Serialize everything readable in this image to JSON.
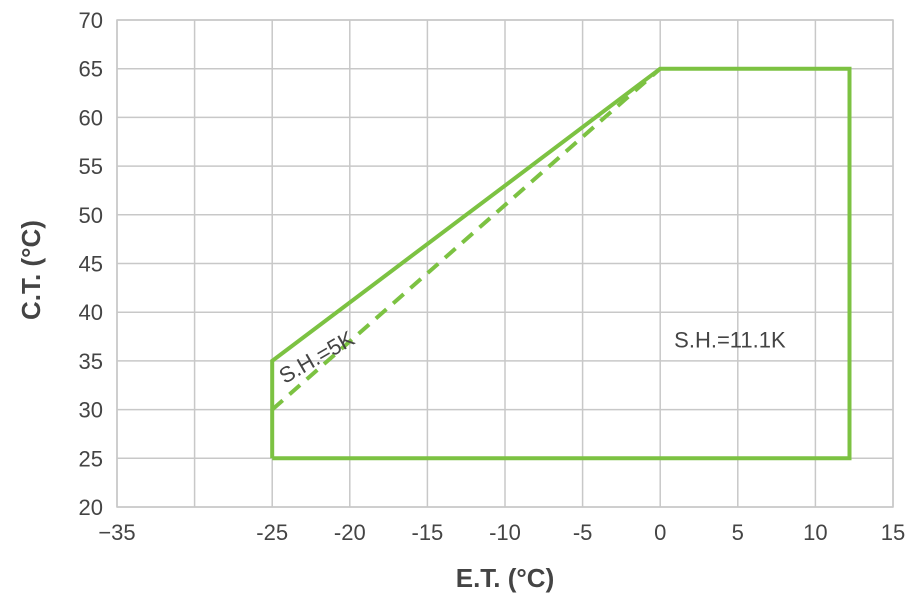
{
  "chart_data": {
    "type": "line",
    "title": "",
    "xlabel": "E.T. (°C)",
    "ylabel": "C.T. (°C)",
    "xlim": [
      -35,
      15
    ],
    "ylim": [
      20,
      70
    ],
    "x_ticks": [
      "−35",
      "-25",
      "-20",
      "-15",
      "-10",
      "-5",
      "0",
      "5",
      "10",
      "15"
    ],
    "x_tick_values": [
      -35,
      -25,
      -20,
      -15,
      -10,
      -5,
      0,
      5,
      10,
      15
    ],
    "y_ticks": [
      "20",
      "25",
      "30",
      "35",
      "40",
      "45",
      "50",
      "55",
      "60",
      "65",
      "70"
    ],
    "y_tick_values": [
      20,
      25,
      30,
      35,
      40,
      45,
      50,
      55,
      60,
      65,
      70
    ],
    "grid": true,
    "series": [
      {
        "style": "solid",
        "color": "#7cc242",
        "points": [
          [
            -25,
            25
          ],
          [
            -25,
            35
          ],
          [
            0,
            65
          ],
          [
            12.2,
            65
          ],
          [
            12.2,
            25
          ],
          [
            -25,
            25
          ]
        ]
      },
      {
        "style": "dashed",
        "color": "#7cc242",
        "points": [
          [
            -25,
            30
          ],
          [
            0,
            65
          ]
        ]
      }
    ],
    "annotations": [
      {
        "text": "S.H.=5K",
        "x": -24.2,
        "y": 32.6,
        "rotation": -30
      },
      {
        "text": "S.H.=11.1K",
        "x": 0.9,
        "y": 36.4,
        "rotation": 0
      }
    ]
  }
}
